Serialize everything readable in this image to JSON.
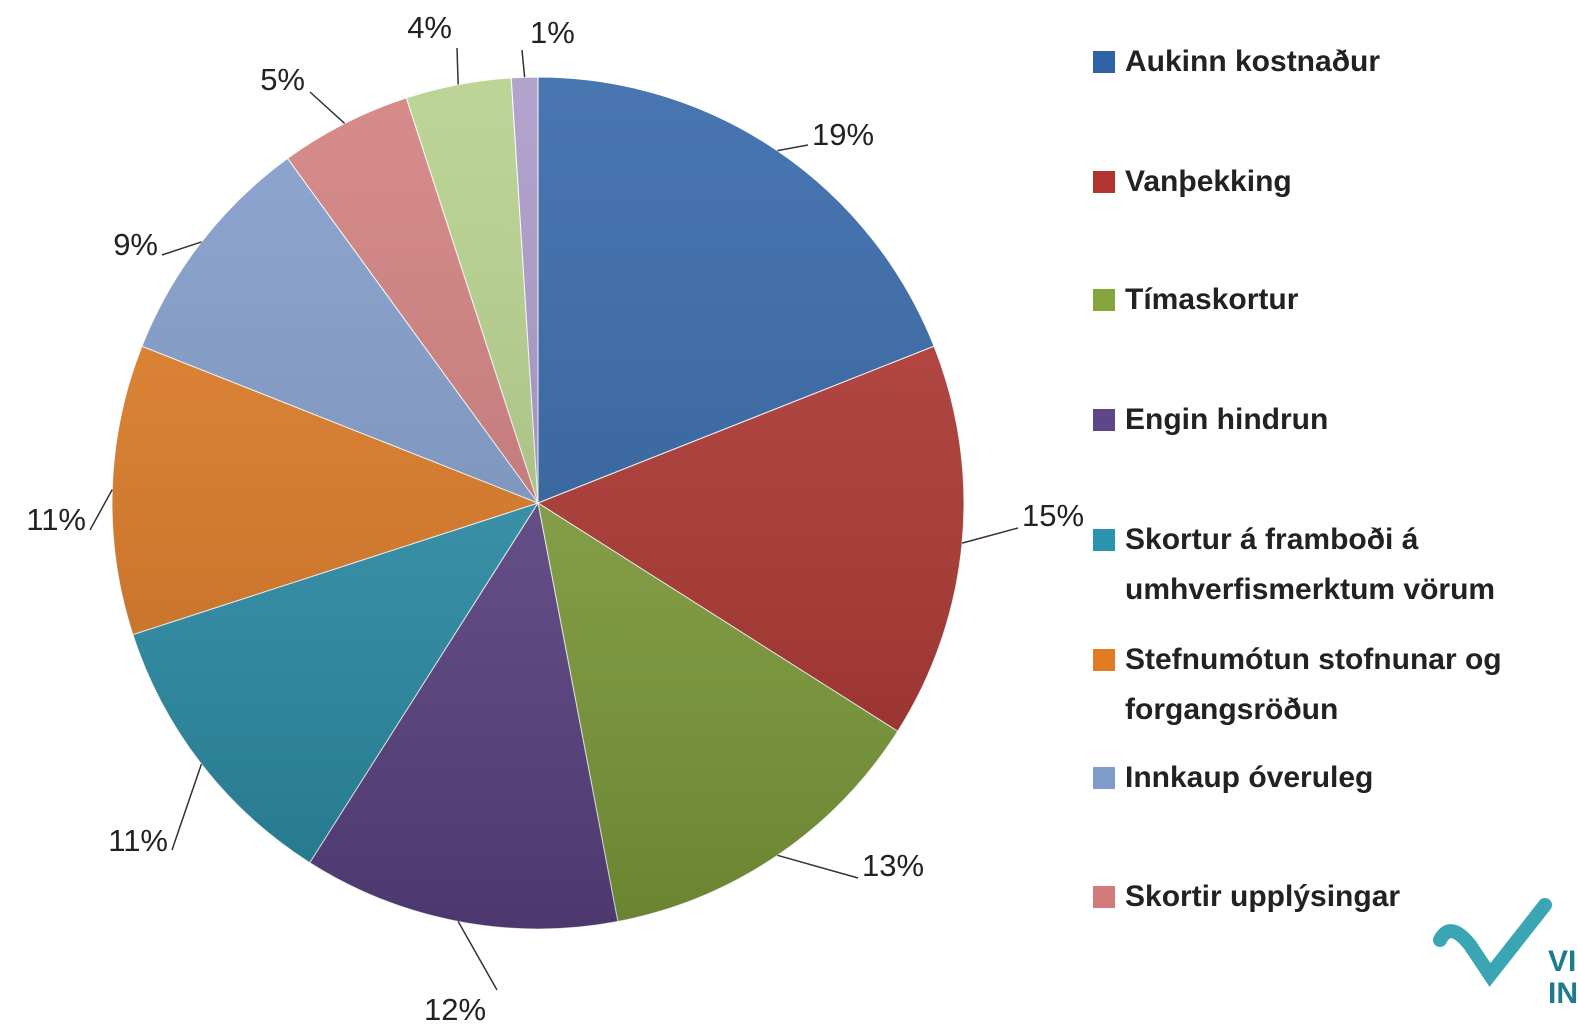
{
  "chart_data": {
    "type": "pie",
    "categories": [
      "Aukinn kostnaður",
      "Vanþekking",
      "Tímaskortur",
      "Engin hindrun",
      "Skortur á framboði á umhverfismerktum vörum",
      "Stefnumótun stofnunar og forgangsröðun",
      "Innkaup óveruleg",
      "Skortir upplýsingar",
      null,
      null
    ],
    "values": [
      19,
      15,
      13,
      12,
      11,
      11,
      9,
      5,
      4,
      1
    ],
    "value_labels": [
      "19%",
      "15%",
      "13%",
      "12%",
      "11%",
      "11%",
      "9%",
      "5%",
      "4%",
      "1%"
    ],
    "colors": [
      "#2f63a6",
      "#b1342f",
      "#84a43c",
      "#5f4589",
      "#2b93ae",
      "#e17b22",
      "#7f9bca",
      "#d07c7b",
      "#b4cf89",
      "#a797c6"
    ]
  },
  "logo": [
    "VI",
    "IN"
  ]
}
